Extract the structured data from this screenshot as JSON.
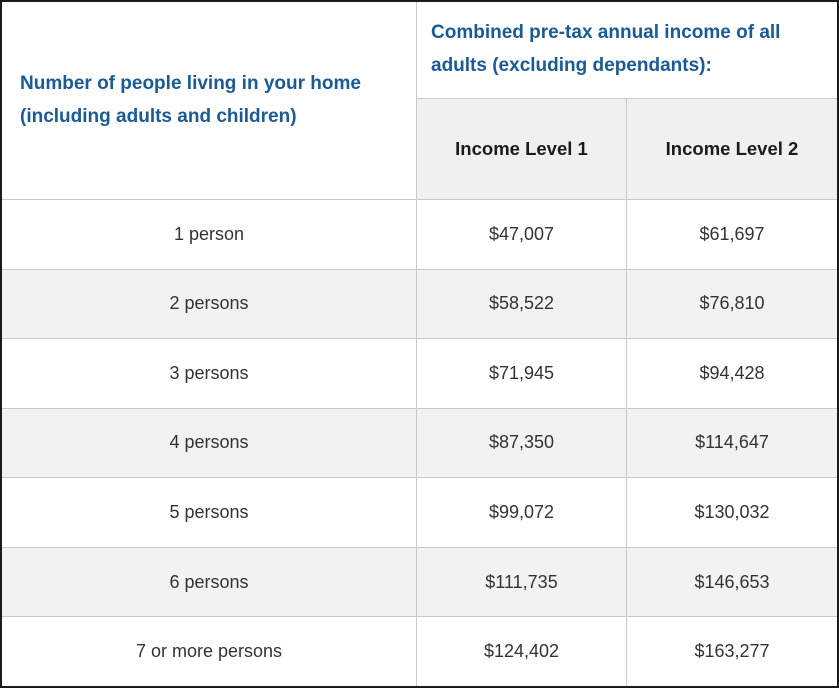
{
  "chart_data": {
    "type": "table",
    "row_header": "Number of people living in your home (including adults and children)",
    "column_group_header": "Combined pre-tax annual income of all adults (excluding dependants):",
    "columns": [
      "Income Level 1",
      "Income Level 2"
    ],
    "categories": [
      "1 person",
      "2 persons",
      "3 persons",
      "4 persons",
      "5 persons",
      "6 persons",
      "7 or more persons"
    ],
    "series": [
      {
        "name": "Income Level 1",
        "values": [
          "$47,007",
          "$58,522",
          "$71,945",
          "$87,350",
          "$99,072",
          "$111,735",
          "$124,402"
        ]
      },
      {
        "name": "Income Level 2",
        "values": [
          "$61,697",
          "$76,810",
          "$94,428",
          "$114,647",
          "$130,032",
          "$146,653",
          "$163,277"
        ]
      }
    ],
    "layout": {
      "grid": "on",
      "zebra_striping": true
    }
  },
  "colors": {
    "header_text_blue": "#1a5a96",
    "subheader_background": "#f0f0f0",
    "row_stripe_background": "#f2f2f2",
    "grid_line": "#c9c9c9",
    "outer_border": "#1b1b1b",
    "body_text": "#333333"
  }
}
